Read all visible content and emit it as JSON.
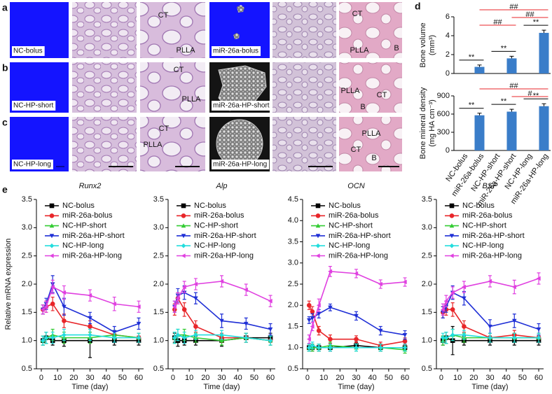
{
  "image_rows": [
    {
      "panel": "a",
      "control": "NC-bolus",
      "treated": "miR-26a-bolus",
      "tissue_labels_mid": [
        "CT",
        "PLLA"
      ],
      "tissue_labels_right": [
        "CT",
        "PLLA",
        "B"
      ]
    },
    {
      "panel": "b",
      "control": "NC-HP-short",
      "treated": "miR-26a-HP-short",
      "tissue_labels_mid": [
        "CT",
        "PLLA"
      ],
      "tissue_labels_right": [
        "PLLA",
        "CT",
        "B"
      ]
    },
    {
      "panel": "c",
      "control": "NC-HP-long",
      "treated": "miR-26a-HP-long",
      "tissue_labels_mid": [
        "CT",
        "PLLA"
      ],
      "tissue_labels_right": [
        "PLLA",
        "CT",
        "B"
      ]
    }
  ],
  "chart_data": [
    {
      "type": "bar",
      "panel": "d",
      "color": "#3a7dc9",
      "categories": [
        "NC-bolus",
        "miR-26a-bolus",
        "NC-HP-short",
        "miR-26a-HP-short",
        "NC-HP-long",
        "miR-26a-HP-long"
      ],
      "pairwise_color": "#000000",
      "between_groups_color": "#e8262a",
      "subplots": [
        {
          "y_label": [
            "Bone volume",
            "(mm³)"
          ],
          "values": [
            0,
            0.7,
            0,
            1.6,
            0,
            4.3
          ],
          "errors": [
            0,
            0.2,
            0,
            0.22,
            0,
            0.28
          ],
          "ylim": [
            0,
            6
          ],
          "yticks": [
            0,
            2,
            4,
            6
          ],
          "pairwise": [
            {
              "text": "**",
              "between": [
                "NC-bolus",
                "miR-26a-bolus"
              ]
            },
            {
              "text": "**",
              "between": [
                "NC-HP-short",
                "miR-26a-HP-short"
              ]
            },
            {
              "text": "**",
              "between": [
                "NC-HP-long",
                "miR-26a-HP-long"
              ]
            }
          ],
          "between_groups": [
            {
              "text": "##",
              "between": [
                "miR-26a-bolus",
                "miR-26a-HP-long"
              ]
            },
            {
              "text": "##",
              "between": [
                "miR-26a-HP-short",
                "miR-26a-HP-long"
              ]
            },
            {
              "text": "##",
              "between": [
                "miR-26a-bolus",
                "miR-26a-HP-short"
              ]
            }
          ]
        },
        {
          "y_label": [
            "Bone mineral density",
            "(mg HA cm⁻³)"
          ],
          "values": [
            0,
            580,
            0,
            640,
            0,
            730
          ],
          "errors": [
            0,
            35,
            0,
            40,
            0,
            40
          ],
          "ylim": [
            0,
            900
          ],
          "yticks": [
            0,
            300,
            600,
            900
          ],
          "pairwise": [
            {
              "text": "**",
              "between": [
                "NC-bolus",
                "miR-26a-bolus"
              ]
            },
            {
              "text": "**",
              "between": [
                "NC-HP-short",
                "miR-26a-HP-short"
              ]
            },
            {
              "text": "**",
              "between": [
                "NC-HP-long",
                "miR-26a-HP-long"
              ]
            }
          ],
          "between_groups": [
            {
              "text": "##",
              "between": [
                "miR-26a-bolus",
                "miR-26a-HP-long"
              ]
            },
            {
              "text": "#",
              "between": [
                "miR-26a-HP-short",
                "miR-26a-HP-long"
              ]
            }
          ]
        }
      ]
    },
    {
      "type": "line",
      "panel": "e",
      "title": "Runx2",
      "y_label": "Relative mRNA expression",
      "x_label": "Time (day)",
      "x": [
        1,
        3,
        7,
        14,
        30,
        45,
        60
      ],
      "xlim": [
        -3,
        63
      ],
      "xticks": [
        0,
        10,
        20,
        30,
        40,
        50,
        60
      ],
      "ylim": [
        0.5,
        3.5
      ],
      "yticks": [
        0.5,
        {
          "value": 1,
          "label": "1.0"
        },
        1.5,
        {
          "value": 2,
          "label": "2.0"
        },
        2.5,
        {
          "value": 3,
          "label": "3.0"
        },
        3.5
      ],
      "series": [
        {
          "name": "NC-bolus",
          "color": "#000000",
          "marker": "square",
          "values": [
            1.0,
            1.05,
            1.0,
            1.0,
            1.0,
            1.0,
            1.0
          ],
          "errors": [
            0.08,
            0.1,
            0.08,
            0.1,
            0.3,
            0.08,
            0.08
          ]
        },
        {
          "name": "miR-26a-bolus",
          "color": "#e8262a",
          "marker": "circle",
          "values": [
            1.55,
            1.6,
            1.65,
            1.35,
            1.25,
            1.1,
            1.05
          ],
          "errors": [
            0.08,
            0.1,
            0.12,
            0.12,
            0.1,
            0.08,
            0.08
          ]
        },
        {
          "name": "NC-HP-short",
          "color": "#33cc33",
          "marker": "triangle-up",
          "values": [
            1.0,
            1.05,
            1.1,
            1.05,
            1.05,
            1.1,
            1.05
          ],
          "errors": [
            0.08,
            0.1,
            0.1,
            0.1,
            0.1,
            0.08,
            0.08
          ]
        },
        {
          "name": "miR-26a-HP-short",
          "color": "#1f2fd6",
          "marker": "triangle-down",
          "values": [
            1.55,
            1.65,
            2.0,
            1.6,
            1.4,
            1.15,
            1.3
          ],
          "errors": [
            0.08,
            0.1,
            0.15,
            0.15,
            0.1,
            0.1,
            0.1
          ]
        },
        {
          "name": "NC-HP-long",
          "color": "#22dddd",
          "marker": "diamond",
          "values": [
            1.0,
            1.05,
            1.05,
            1.1,
            1.1,
            1.05,
            1.05
          ],
          "errors": [
            0.08,
            0.1,
            0.1,
            0.1,
            0.1,
            0.08,
            0.08
          ]
        },
        {
          "name": "miR-26a-HP-long",
          "color": "#e040e0",
          "marker": "triangle-left",
          "values": [
            1.55,
            1.6,
            1.95,
            1.85,
            1.8,
            1.65,
            1.6
          ],
          "errors": [
            0.08,
            0.1,
            0.12,
            0.12,
            0.1,
            0.12,
            0.1
          ]
        }
      ]
    },
    {
      "type": "line",
      "title": "Alp",
      "x_label": "Time (day)",
      "x": [
        1,
        3,
        7,
        14,
        30,
        45,
        60
      ],
      "xlim": [
        -3,
        63
      ],
      "xticks": [
        0,
        10,
        20,
        30,
        40,
        50,
        60
      ],
      "ylim": [
        0.5,
        3.5
      ],
      "yticks": [
        0.5,
        {
          "value": 1,
          "label": "1.0"
        },
        1.5,
        {
          "value": 2,
          "label": "2.0"
        },
        2.5,
        {
          "value": 3,
          "label": "3.0"
        },
        3.5
      ],
      "series": [
        {
          "name": "NC-bolus",
          "color": "#000000",
          "marker": "square",
          "values": [
            1.05,
            1.0,
            1.0,
            1.0,
            1.0,
            1.05,
            1.05
          ],
          "errors": [
            0.08,
            0.1,
            0.08,
            0.08,
            0.1,
            0.08,
            0.08
          ]
        },
        {
          "name": "miR-26a-bolus",
          "color": "#e8262a",
          "marker": "circle",
          "values": [
            1.55,
            1.75,
            1.55,
            1.25,
            1.05,
            1.05,
            1.0
          ],
          "errors": [
            0.1,
            0.1,
            0.12,
            0.1,
            0.08,
            0.08,
            0.08
          ]
        },
        {
          "name": "NC-HP-short",
          "color": "#33cc33",
          "marker": "triangle-up",
          "values": [
            1.05,
            1.1,
            1.1,
            1.05,
            1.0,
            1.05,
            1.0
          ],
          "errors": [
            0.1,
            0.1,
            0.1,
            0.08,
            0.08,
            0.08,
            0.08
          ]
        },
        {
          "name": "miR-26a-HP-short",
          "color": "#1f2fd6",
          "marker": "triangle-down",
          "values": [
            1.6,
            1.8,
            1.85,
            1.75,
            1.35,
            1.3,
            1.2
          ],
          "errors": [
            0.1,
            0.12,
            0.12,
            0.1,
            0.12,
            0.1,
            0.1
          ]
        },
        {
          "name": "NC-HP-long",
          "color": "#22dddd",
          "marker": "diamond",
          "values": [
            1.05,
            1.1,
            1.05,
            1.1,
            1.1,
            1.05,
            1.0
          ],
          "errors": [
            0.1,
            0.1,
            0.1,
            0.08,
            0.08,
            0.08,
            0.08
          ]
        },
        {
          "name": "miR-26a-HP-long",
          "color": "#e040e0",
          "marker": "triangle-left",
          "values": [
            1.6,
            1.75,
            1.95,
            2.0,
            2.05,
            1.9,
            1.7
          ],
          "errors": [
            0.1,
            0.1,
            0.1,
            0.1,
            0.1,
            0.1,
            0.1
          ]
        }
      ]
    },
    {
      "type": "line",
      "title": "OCN",
      "x_label": "Time (day)",
      "x": [
        1,
        3,
        7,
        14,
        30,
        45,
        60
      ],
      "xlim": [
        -3,
        63
      ],
      "xticks": [
        0,
        10,
        20,
        30,
        40,
        50,
        60
      ],
      "ylim": [
        0.5,
        4.5
      ],
      "yticks": [
        0.5,
        {
          "value": 1,
          "label": "1.0"
        },
        1.5,
        {
          "value": 2,
          "label": "2.0"
        },
        2.5,
        {
          "value": 3,
          "label": "3.0"
        },
        3.5,
        {
          "value": 4,
          "label": "4.0"
        },
        4.5
      ],
      "series": [
        {
          "name": "NC-bolus",
          "color": "#000000",
          "marker": "square",
          "values": [
            1.0,
            1.0,
            1.0,
            1.0,
            1.05,
            1.0,
            1.0
          ],
          "errors": [
            0.08,
            0.08,
            0.08,
            0.08,
            0.08,
            0.08,
            0.08
          ]
        },
        {
          "name": "miR-26a-bolus",
          "color": "#e8262a",
          "marker": "circle",
          "values": [
            2.0,
            1.85,
            1.4,
            1.2,
            1.2,
            1.05,
            1.15
          ],
          "errors": [
            0.1,
            0.12,
            0.1,
            0.1,
            0.08,
            0.08,
            0.08
          ]
        },
        {
          "name": "NC-HP-short",
          "color": "#33cc33",
          "marker": "triangle-up",
          "values": [
            1.0,
            1.0,
            1.0,
            1.05,
            1.0,
            1.0,
            0.95
          ],
          "errors": [
            0.08,
            0.08,
            0.08,
            0.08,
            0.08,
            0.08,
            0.08
          ]
        },
        {
          "name": "miR-26a-HP-short",
          "color": "#1f2fd6",
          "marker": "triangle-down",
          "values": [
            1.65,
            1.7,
            1.8,
            1.95,
            1.75,
            1.4,
            1.3
          ],
          "errors": [
            0.08,
            0.1,
            0.1,
            0.08,
            0.1,
            0.1,
            0.1
          ]
        },
        {
          "name": "NC-HP-long",
          "color": "#22dddd",
          "marker": "diamond",
          "values": [
            1.0,
            1.05,
            1.0,
            1.0,
            1.0,
            1.0,
            1.0
          ],
          "errors": [
            0.08,
            0.08,
            0.08,
            0.08,
            0.08,
            0.08,
            0.08
          ]
        },
        {
          "name": "miR-26a-HP-long",
          "color": "#e040e0",
          "marker": "triangle-left",
          "values": [
            1.2,
            1.5,
            2.0,
            2.8,
            2.75,
            2.5,
            2.55
          ],
          "errors": [
            0.1,
            0.1,
            0.15,
            0.12,
            0.1,
            0.1,
            0.1
          ]
        }
      ]
    },
    {
      "type": "line",
      "title": "BSP",
      "x_label": "Time (day)",
      "x": [
        1,
        3,
        7,
        14,
        30,
        45,
        60
      ],
      "xlim": [
        -3,
        63
      ],
      "xticks": [
        0,
        10,
        20,
        30,
        40,
        50,
        60
      ],
      "ylim": [
        0.5,
        3.5
      ],
      "yticks": [
        0.5,
        {
          "value": 1,
          "label": "1.0"
        },
        1.5,
        {
          "value": 2,
          "label": "2.0"
        },
        2.5,
        {
          "value": 3,
          "label": "3.0"
        },
        3.5
      ],
      "series": [
        {
          "name": "NC-bolus",
          "color": "#000000",
          "marker": "square",
          "values": [
            1.0,
            1.05,
            1.0,
            1.0,
            1.0,
            1.0,
            1.0
          ],
          "errors": [
            0.08,
            0.1,
            0.25,
            0.08,
            0.08,
            0.08,
            0.08
          ]
        },
        {
          "name": "miR-26a-bolus",
          "color": "#e8262a",
          "marker": "circle",
          "values": [
            1.5,
            1.55,
            1.55,
            1.25,
            1.05,
            1.1,
            1.05
          ],
          "errors": [
            0.1,
            0.1,
            0.12,
            0.1,
            0.08,
            0.08,
            0.08
          ]
        },
        {
          "name": "NC-HP-short",
          "color": "#33cc33",
          "marker": "triangle-up",
          "values": [
            1.0,
            1.05,
            1.1,
            1.05,
            1.05,
            1.05,
            1.05
          ],
          "errors": [
            0.08,
            0.1,
            0.1,
            0.08,
            0.08,
            0.08,
            0.08
          ]
        },
        {
          "name": "miR-26a-HP-short",
          "color": "#1f2fd6",
          "marker": "triangle-down",
          "values": [
            1.5,
            1.6,
            1.85,
            1.75,
            1.25,
            1.35,
            1.2
          ],
          "errors": [
            0.1,
            0.1,
            0.12,
            0.12,
            0.12,
            0.12,
            0.1
          ]
        },
        {
          "name": "NC-HP-long",
          "color": "#22dddd",
          "marker": "diamond",
          "values": [
            1.05,
            1.05,
            1.1,
            1.1,
            1.05,
            1.05,
            1.05
          ],
          "errors": [
            0.08,
            0.1,
            0.1,
            0.08,
            0.08,
            0.08,
            0.08
          ]
        },
        {
          "name": "miR-26a-HP-long",
          "color": "#e040e0",
          "marker": "triangle-left",
          "values": [
            1.55,
            1.7,
            1.85,
            1.95,
            2.05,
            1.95,
            2.1
          ],
          "errors": [
            0.1,
            0.1,
            0.1,
            0.1,
            0.1,
            0.12,
            0.1
          ]
        }
      ]
    }
  ]
}
